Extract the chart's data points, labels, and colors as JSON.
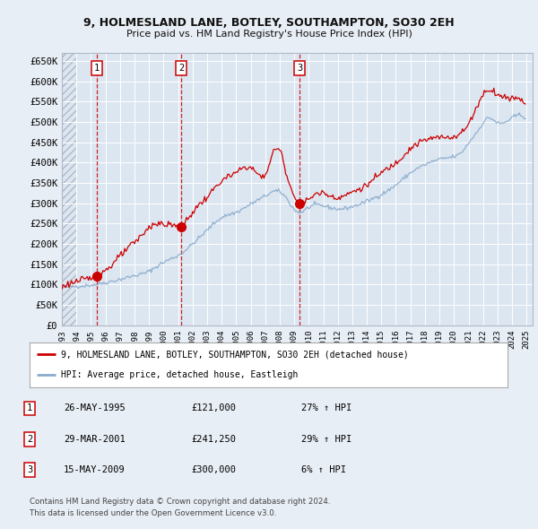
{
  "title": "9, HOLMESLAND LANE, BOTLEY, SOUTHAMPTON, SO30 2EH",
  "subtitle": "Price paid vs. HM Land Registry's House Price Index (HPI)",
  "ylim": [
    0,
    670000
  ],
  "yticks": [
    0,
    50000,
    100000,
    150000,
    200000,
    250000,
    300000,
    350000,
    400000,
    450000,
    500000,
    550000,
    600000,
    650000
  ],
  "ytick_labels": [
    "£0",
    "£50K",
    "£100K",
    "£150K",
    "£200K",
    "£250K",
    "£300K",
    "£350K",
    "£400K",
    "£450K",
    "£500K",
    "£550K",
    "£600K",
    "£650K"
  ],
  "plot_bg_color": "#dce6f1",
  "fig_bg_color": "#e8eef5",
  "grid_color": "#ffffff",
  "sale_prices": [
    121000,
    241250,
    300000
  ],
  "sale_labels": [
    "1",
    "2",
    "3"
  ],
  "legend_line1": "9, HOLMESLAND LANE, BOTLEY, SOUTHAMPTON, SO30 2EH (detached house)",
  "legend_line2": "HPI: Average price, detached house, Eastleigh",
  "table_data": [
    [
      "1",
      "26-MAY-1995",
      "£121,000",
      "27% ↑ HPI"
    ],
    [
      "2",
      "29-MAR-2001",
      "£241,250",
      "29% ↑ HPI"
    ],
    [
      "3",
      "15-MAY-2009",
      "£300,000",
      "6% ↑ HPI"
    ]
  ],
  "footnote1": "Contains HM Land Registry data © Crown copyright and database right 2024.",
  "footnote2": "This data is licensed under the Open Government Licence v3.0.",
  "line_color_red": "#cc0000",
  "line_color_blue": "#88aacc",
  "dot_color": "#cc0000",
  "dashed_line_color": "#cc0000"
}
